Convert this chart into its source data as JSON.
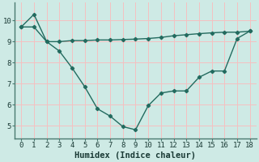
{
  "line1_x": [
    0,
    1,
    2,
    3,
    4,
    5,
    6,
    7,
    8,
    9,
    10,
    11,
    12,
    13,
    14,
    15,
    16,
    17,
    18
  ],
  "line1_y": [
    9.7,
    9.7,
    9.0,
    9.0,
    9.05,
    9.05,
    9.08,
    9.08,
    9.1,
    9.12,
    9.15,
    9.2,
    9.28,
    9.33,
    9.38,
    9.42,
    9.45,
    9.45,
    9.5
  ],
  "line2_x": [
    0,
    1,
    2,
    3,
    4,
    5,
    6,
    7,
    8,
    9,
    10,
    11,
    12,
    13,
    14,
    15,
    16,
    17,
    18
  ],
  "line2_y": [
    9.7,
    10.3,
    9.0,
    8.55,
    7.75,
    6.85,
    5.8,
    5.45,
    4.95,
    4.8,
    5.95,
    6.55,
    6.65,
    6.65,
    7.3,
    7.6,
    7.6,
    9.15,
    9.5
  ],
  "line_color": "#236b5f",
  "marker": "D",
  "marker_size": 2.2,
  "line_width": 1.0,
  "xlabel": "Humidex (Indice chaleur)",
  "xlim": [
    -0.5,
    18.5
  ],
  "ylim": [
    4.4,
    10.85
  ],
  "xticks": [
    0,
    1,
    2,
    3,
    4,
    5,
    6,
    7,
    8,
    9,
    10,
    11,
    12,
    13,
    14,
    15,
    16,
    17,
    18
  ],
  "yticks": [
    5,
    6,
    7,
    8,
    9,
    10
  ],
  "bg_color": "#ceeae5",
  "grid_major_color": "#f5c0c0",
  "grid_minor_color": "#f5c0c0",
  "axis_color": "#4a7a70",
  "tick_label_fontsize": 6.5,
  "xlabel_fontsize": 7.5
}
